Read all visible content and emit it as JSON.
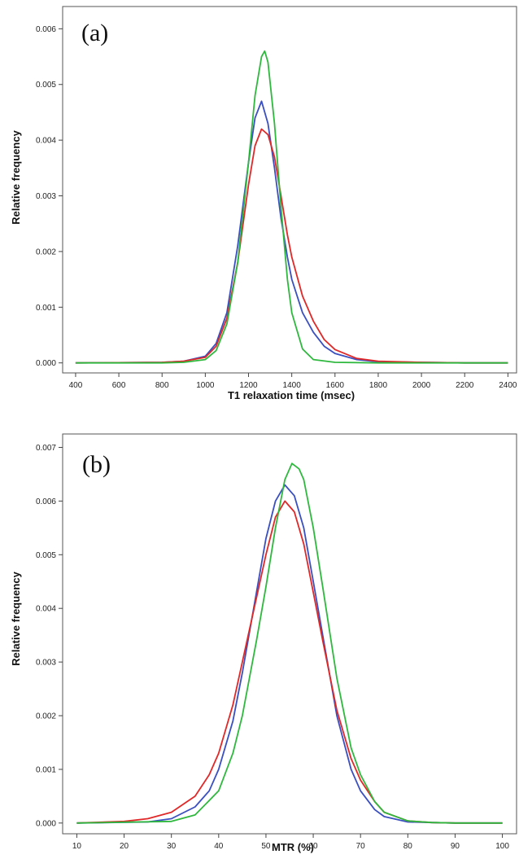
{
  "chart_data": [
    {
      "type": "line",
      "panel_label": "(a)",
      "xlabel": "T1 relaxation time (msec)",
      "ylabel": "Relative frequency",
      "xlim": [
        340,
        2440
      ],
      "ylim": [
        -0.00018,
        0.0064
      ],
      "xticks": [
        400,
        600,
        800,
        1000,
        1200,
        1400,
        1600,
        1800,
        2000,
        2200,
        2400
      ],
      "yticks": [
        0.0,
        0.001,
        0.002,
        0.003,
        0.004,
        0.005,
        0.006
      ],
      "ytick_labels": [
        "0.000",
        "0.001",
        "0.002",
        "0.003",
        "0.004",
        "0.005",
        "0.006"
      ],
      "grid": false,
      "legend": "none",
      "series": [
        {
          "color": "#3a4fc0",
          "x": [
            400,
            800,
            900,
            1000,
            1050,
            1100,
            1150,
            1200,
            1230,
            1260,
            1290,
            1320,
            1350,
            1380,
            1400,
            1450,
            1500,
            1550,
            1600,
            1700,
            1800,
            2000,
            2200,
            2400
          ],
          "y": [
            0,
            1e-05,
            3e-05,
            0.00012,
            0.00035,
            0.0009,
            0.0021,
            0.0036,
            0.0044,
            0.0047,
            0.0043,
            0.0035,
            0.0026,
            0.0019,
            0.0015,
            0.0009,
            0.00055,
            0.0003,
            0.00017,
            6e-05,
            2e-05,
            1e-05,
            0,
            0
          ]
        },
        {
          "color": "#e02828",
          "x": [
            400,
            800,
            900,
            1000,
            1050,
            1100,
            1150,
            1200,
            1230,
            1260,
            1290,
            1320,
            1350,
            1380,
            1400,
            1450,
            1500,
            1550,
            1600,
            1700,
            1800,
            2000,
            2200,
            2400
          ],
          "y": [
            0,
            1e-05,
            3e-05,
            0.0001,
            0.0003,
            0.0008,
            0.0018,
            0.0032,
            0.0039,
            0.0042,
            0.0041,
            0.0037,
            0.003,
            0.0023,
            0.0019,
            0.0012,
            0.00075,
            0.00042,
            0.00024,
            8e-05,
            3e-05,
            1e-05,
            0,
            0
          ]
        },
        {
          "color": "#2fb83e",
          "x": [
            400,
            800,
            900,
            1000,
            1050,
            1100,
            1150,
            1200,
            1230,
            1260,
            1275,
            1290,
            1320,
            1350,
            1380,
            1400,
            1450,
            1500,
            1600,
            1800,
            2000,
            2200,
            2400
          ],
          "y": [
            0,
            0,
            1e-05,
            6e-05,
            0.00022,
            0.0007,
            0.0018,
            0.0036,
            0.0048,
            0.0055,
            0.0056,
            0.0054,
            0.0043,
            0.0028,
            0.0015,
            0.0009,
            0.00025,
            6e-05,
            1e-05,
            0,
            0,
            0,
            0
          ]
        }
      ]
    },
    {
      "type": "line",
      "panel_label": "(b)",
      "xlabel": "MTR (%)",
      "ylabel": "Relative frequency",
      "xlim": [
        7,
        103
      ],
      "ylim": [
        -0.0002,
        0.00725
      ],
      "xticks": [
        10,
        20,
        30,
        40,
        50,
        60,
        70,
        80,
        90,
        100
      ],
      "yticks": [
        0.0,
        0.001,
        0.002,
        0.003,
        0.004,
        0.005,
        0.006,
        0.007
      ],
      "ytick_labels": [
        "0.000",
        "0.001",
        "0.002",
        "0.003",
        "0.004",
        "0.005",
        "0.006",
        "0.007"
      ],
      "grid": false,
      "legend": "none",
      "series": [
        {
          "color": "#3a4fc0",
          "x": [
            10,
            25,
            30,
            35,
            38,
            40,
            43,
            45,
            48,
            50,
            52,
            54,
            56,
            58,
            60,
            62,
            65,
            68,
            70,
            73,
            75,
            80,
            85,
            90,
            100
          ],
          "y": [
            0,
            2e-05,
            8e-05,
            0.0003,
            0.0006,
            0.001,
            0.0019,
            0.0028,
            0.0043,
            0.0053,
            0.006,
            0.0063,
            0.0061,
            0.0055,
            0.0045,
            0.0035,
            0.002,
            0.001,
            0.0006,
            0.00025,
            0.00012,
            2e-05,
            1e-05,
            0,
            0
          ]
        },
        {
          "color": "#e02828",
          "x": [
            10,
            20,
            25,
            30,
            35,
            38,
            40,
            43,
            45,
            48,
            50,
            52,
            54,
            56,
            58,
            60,
            62,
            65,
            68,
            70,
            73,
            75,
            80,
            85,
            90,
            100
          ],
          "y": [
            0,
            3e-05,
            8e-05,
            0.0002,
            0.0005,
            0.0009,
            0.0013,
            0.0022,
            0.003,
            0.0042,
            0.005,
            0.0057,
            0.006,
            0.0058,
            0.0052,
            0.0043,
            0.0034,
            0.0021,
            0.0012,
            0.0008,
            0.0004,
            0.0002,
            4e-05,
            1e-05,
            0,
            0
          ]
        },
        {
          "color": "#2fb83e",
          "x": [
            10,
            30,
            35,
            40,
            43,
            45,
            48,
            50,
            52,
            54,
            55.5,
            57,
            58,
            60,
            62,
            65,
            68,
            70,
            73,
            75,
            80,
            85,
            90,
            100
          ],
          "y": [
            0,
            3e-05,
            0.00015,
            0.0006,
            0.0013,
            0.002,
            0.0034,
            0.0044,
            0.0055,
            0.0064,
            0.0067,
            0.0066,
            0.0064,
            0.0055,
            0.0044,
            0.0027,
            0.0014,
            0.0009,
            0.0004,
            0.0002,
            4e-05,
            1e-05,
            0,
            0
          ]
        }
      ]
    }
  ]
}
